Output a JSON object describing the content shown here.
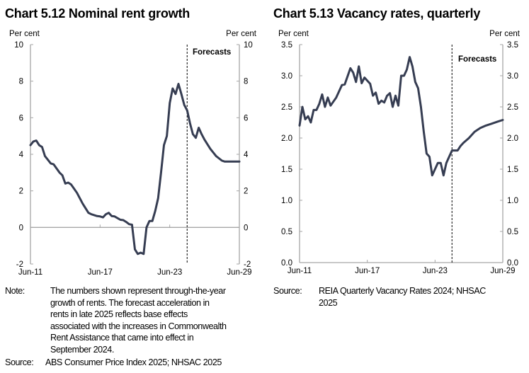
{
  "charts_text": {
    "left_title": "Chart 5.12 Nominal rent growth",
    "right_title": "Chart 5.13 Vacancy rates, quarterly"
  },
  "notes": {
    "left_note_label": "Note:",
    "left_note_lines": [
      "The numbers shown represent through-the-year",
      "growth of rents. The forecast acceleration in",
      "rents in late 2025 reflects base effects",
      "associated with the increases in Commonwealth",
      "Rent Assistance that came into effect in",
      "September 2024."
    ],
    "left_source_label": "Source:",
    "left_source": "ABS Consumer Price Index 2025; NHSAC 2025",
    "right_source_label": "Source:",
    "right_source_lines": [
      "REIA Quarterly Vacancy Rates 2024; NHSAC",
      "2025"
    ]
  },
  "chart_data": [
    {
      "type": "line",
      "title": "Chart 5.12 Nominal rent growth",
      "ylabel_left": "Per cent",
      "ylabel_right": "Per cent",
      "ylim": [
        -2,
        10
      ],
      "yticks": [
        "10",
        "8",
        "6",
        "4",
        "2",
        "0",
        "-2"
      ],
      "ytick_values": [
        10,
        8,
        6,
        4,
        2,
        0,
        -2
      ],
      "xlim": [
        "2011-06",
        "2029-06"
      ],
      "xticks": [
        "Jun-11",
        "Jun-17",
        "Jun-23",
        "Jun-29"
      ],
      "xtick_dates": [
        "2011-06",
        "2017-06",
        "2023-06",
        "2029-06"
      ],
      "forecast_start": "2024-12",
      "forecast_label": "Forecasts",
      "zero_line": true,
      "grid": false,
      "line_color": "#363d52",
      "axis_color": "#a6a6a6",
      "series": [
        {
          "points": [
            [
              "2011-06",
              4.5
            ],
            [
              "2011-09",
              4.7
            ],
            [
              "2011-12",
              4.75
            ],
            [
              "2012-03",
              4.5
            ],
            [
              "2012-06",
              4.4
            ],
            [
              "2012-09",
              3.9
            ],
            [
              "2013-03",
              3.5
            ],
            [
              "2013-06",
              3.45
            ],
            [
              "2013-12",
              3.0
            ],
            [
              "2014-03",
              2.85
            ],
            [
              "2014-06",
              2.4
            ],
            [
              "2014-09",
              2.45
            ],
            [
              "2014-12",
              2.35
            ],
            [
              "2015-06",
              1.9
            ],
            [
              "2015-12",
              1.3
            ],
            [
              "2016-06",
              0.8
            ],
            [
              "2016-09",
              0.72
            ],
            [
              "2017-03",
              0.62
            ],
            [
              "2017-06",
              0.6
            ],
            [
              "2017-09",
              0.55
            ],
            [
              "2017-12",
              0.72
            ],
            [
              "2018-03",
              0.8
            ],
            [
              "2018-06",
              0.62
            ],
            [
              "2018-09",
              0.6
            ],
            [
              "2019-03",
              0.42
            ],
            [
              "2019-06",
              0.4
            ],
            [
              "2019-09",
              0.3
            ],
            [
              "2019-12",
              0.18
            ],
            [
              "2020-03",
              0.15
            ],
            [
              "2020-06",
              -1.2
            ],
            [
              "2020-09",
              -1.45
            ],
            [
              "2020-12",
              -1.38
            ],
            [
              "2021-03",
              -1.45
            ],
            [
              "2021-06",
              0.0
            ],
            [
              "2021-09",
              0.35
            ],
            [
              "2021-12",
              0.35
            ],
            [
              "2022-03",
              0.9
            ],
            [
              "2022-06",
              1.6
            ],
            [
              "2022-09",
              3.0
            ],
            [
              "2022-12",
              4.5
            ],
            [
              "2023-03",
              5.0
            ],
            [
              "2023-06",
              6.8
            ],
            [
              "2023-09",
              7.6
            ],
            [
              "2023-12",
              7.3
            ],
            [
              "2024-03",
              7.85
            ],
            [
              "2024-06",
              7.3
            ],
            [
              "2024-09",
              6.7
            ],
            [
              "2024-12",
              6.4
            ],
            [
              "2025-03",
              5.7
            ],
            [
              "2025-06",
              5.1
            ],
            [
              "2025-09",
              4.9
            ],
            [
              "2025-12",
              5.45
            ],
            [
              "2026-03",
              5.1
            ],
            [
              "2026-06",
              4.8
            ],
            [
              "2026-09",
              4.55
            ],
            [
              "2026-12",
              4.3
            ],
            [
              "2027-06",
              3.9
            ],
            [
              "2027-12",
              3.65
            ],
            [
              "2028-03",
              3.6
            ],
            [
              "2029-06",
              3.6
            ]
          ]
        }
      ]
    },
    {
      "type": "line",
      "title": "Chart 5.13 Vacancy rates, quarterly",
      "ylabel_left": "Per cent",
      "ylabel_right": "Per cent",
      "ylim": [
        0,
        3.5
      ],
      "yticks": [
        "3.5",
        "3.0",
        "2.5",
        "2.0",
        "1.5",
        "1.0",
        "0.5",
        "0.0"
      ],
      "ytick_values": [
        3.5,
        3.0,
        2.5,
        2.0,
        1.5,
        1.0,
        0.5,
        0.0
      ],
      "xlim": [
        "2011-06",
        "2029-06"
      ],
      "xticks": [
        "Jun-11",
        "Jun-17",
        "Jun-23",
        "Jun-29"
      ],
      "xtick_dates": [
        "2011-06",
        "2017-06",
        "2023-06",
        "2029-06"
      ],
      "forecast_start": "2024-12",
      "forecast_label": "Forecasts",
      "zero_line": true,
      "grid": false,
      "line_color": "#363d52",
      "axis_color": "#a6a6a6",
      "series": [
        {
          "points": [
            [
              "2011-06",
              2.2
            ],
            [
              "2011-09",
              2.5
            ],
            [
              "2011-12",
              2.3
            ],
            [
              "2012-03",
              2.35
            ],
            [
              "2012-06",
              2.25
            ],
            [
              "2012-09",
              2.45
            ],
            [
              "2012-12",
              2.45
            ],
            [
              "2013-03",
              2.55
            ],
            [
              "2013-06",
              2.7
            ],
            [
              "2013-09",
              2.5
            ],
            [
              "2013-12",
              2.65
            ],
            [
              "2014-03",
              2.52
            ],
            [
              "2014-09",
              2.65
            ],
            [
              "2015-03",
              2.85
            ],
            [
              "2015-06",
              2.86
            ],
            [
              "2015-12",
              3.12
            ],
            [
              "2016-03",
              3.05
            ],
            [
              "2016-06",
              2.9
            ],
            [
              "2016-09",
              3.15
            ],
            [
              "2016-12",
              2.88
            ],
            [
              "2017-03",
              2.97
            ],
            [
              "2017-09",
              2.87
            ],
            [
              "2017-12",
              2.68
            ],
            [
              "2018-03",
              2.73
            ],
            [
              "2018-06",
              2.55
            ],
            [
              "2018-09",
              2.6
            ],
            [
              "2018-12",
              2.57
            ],
            [
              "2019-03",
              2.68
            ],
            [
              "2019-06",
              2.72
            ],
            [
              "2019-09",
              2.5
            ],
            [
              "2019-12",
              2.68
            ],
            [
              "2020-03",
              2.52
            ],
            [
              "2020-06",
              3.0
            ],
            [
              "2020-09",
              3.0
            ],
            [
              "2020-12",
              3.1
            ],
            [
              "2021-03",
              3.3
            ],
            [
              "2021-06",
              3.15
            ],
            [
              "2021-09",
              2.9
            ],
            [
              "2021-12",
              2.8
            ],
            [
              "2022-03",
              2.5
            ],
            [
              "2022-06",
              2.1
            ],
            [
              "2022-09",
              1.75
            ],
            [
              "2022-12",
              1.7
            ],
            [
              "2023-03",
              1.4
            ],
            [
              "2023-06",
              1.5
            ],
            [
              "2023-09",
              1.6
            ],
            [
              "2023-12",
              1.6
            ],
            [
              "2024-03",
              1.4
            ],
            [
              "2024-06",
              1.6
            ],
            [
              "2024-09",
              1.7
            ],
            [
              "2024-12",
              1.8
            ],
            [
              "2025-03",
              1.8
            ],
            [
              "2025-06",
              1.8
            ],
            [
              "2025-09",
              1.87
            ],
            [
              "2025-12",
              1.92
            ],
            [
              "2026-06",
              2.0
            ],
            [
              "2026-12",
              2.1
            ],
            [
              "2027-06",
              2.16
            ],
            [
              "2027-12",
              2.2
            ],
            [
              "2028-06",
              2.23
            ],
            [
              "2028-12",
              2.26
            ],
            [
              "2029-06",
              2.29
            ]
          ]
        }
      ]
    }
  ]
}
